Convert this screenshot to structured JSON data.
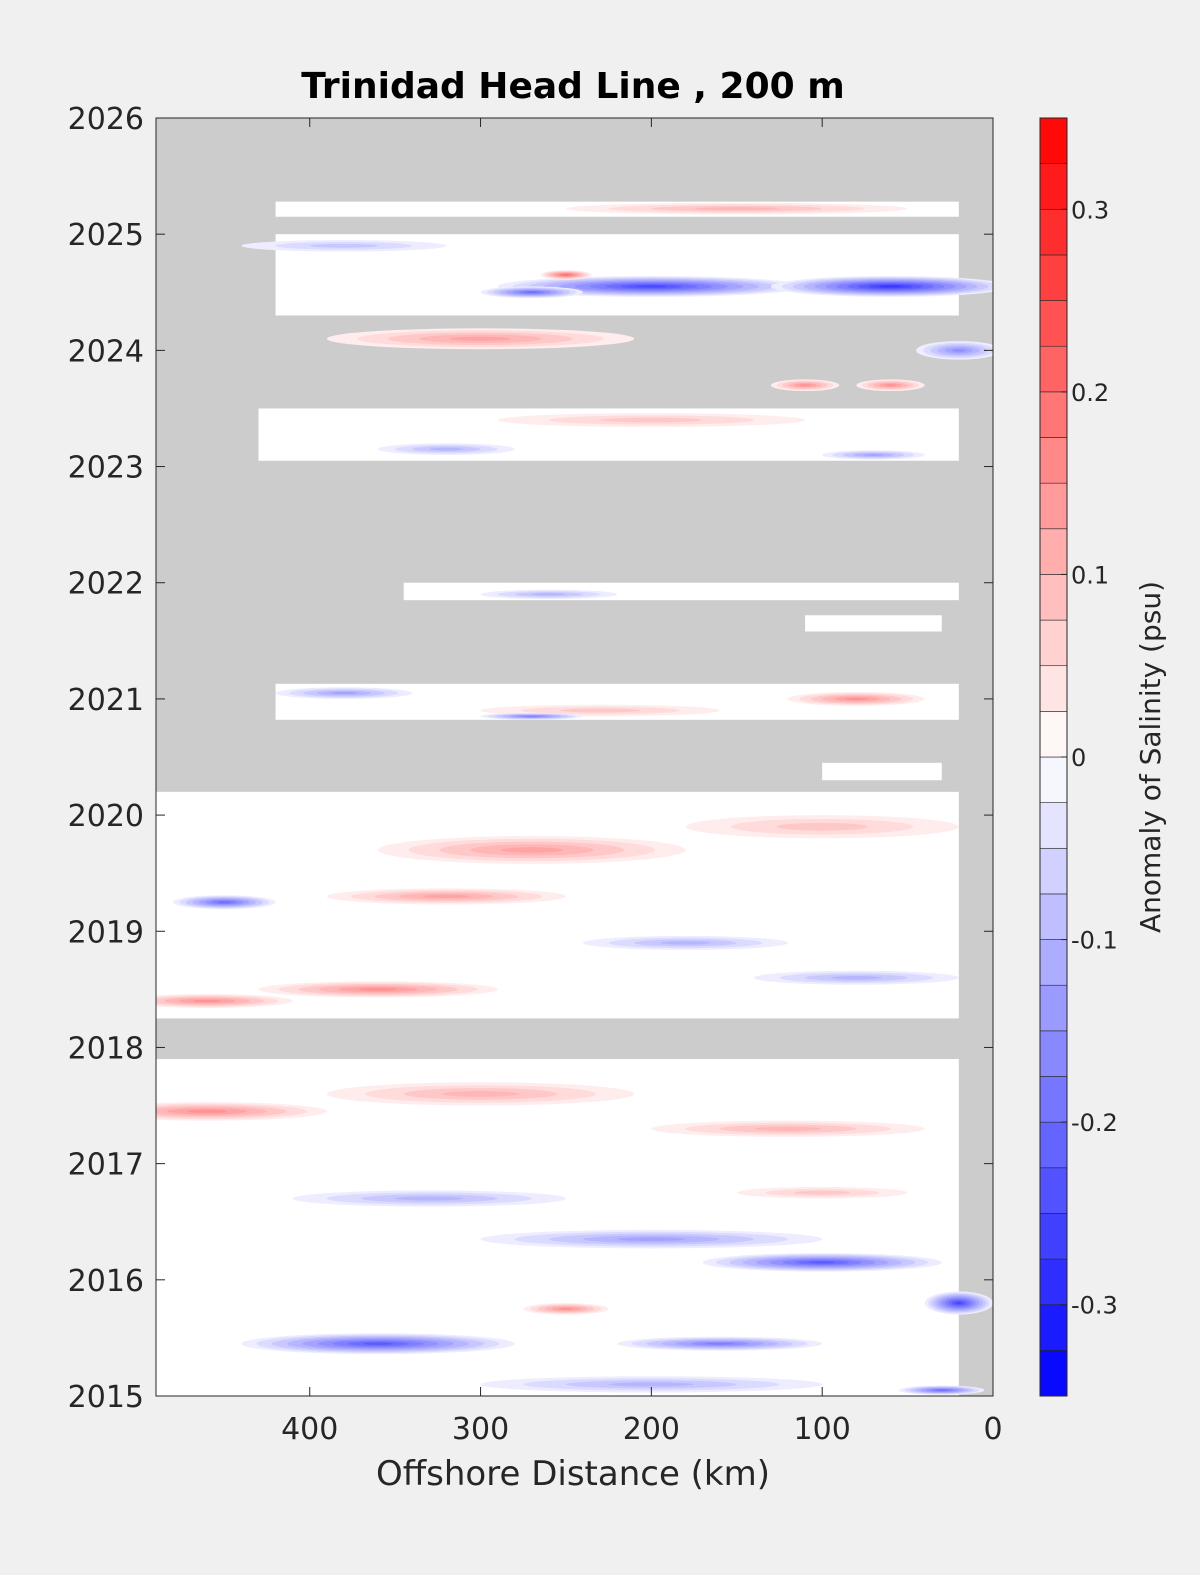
{
  "chart_data": {
    "type": "heatmap",
    "title": "Trinidad Head Line , 200 m",
    "xlabel": "Offshore Distance (km)",
    "ylabel": "",
    "xlim": [
      490,
      0
    ],
    "ylim": [
      2015,
      2026
    ],
    "x_ticks": [
      400,
      300,
      200,
      100,
      0
    ],
    "x_tick_labels": [
      "400",
      "300",
      "200",
      "100",
      "0"
    ],
    "y_ticks": [
      2015,
      2016,
      2017,
      2018,
      2019,
      2020,
      2021,
      2022,
      2023,
      2024,
      2025,
      2026
    ],
    "y_tick_labels": [
      "2015",
      "2016",
      "2017",
      "2018",
      "2019",
      "2020",
      "2021",
      "2022",
      "2023",
      "2024",
      "2025",
      "2026"
    ],
    "x_reversed": true,
    "colorbar": {
      "label": "Anomaly of Salinity (psu)",
      "range": [
        -0.35,
        0.35
      ],
      "step": 0.025,
      "ticks": [
        0.3,
        0.2,
        0.1,
        0,
        -0.1,
        -0.2,
        -0.3
      ],
      "tick_labels": [
        "0.3",
        "0.2",
        "0.1",
        "0",
        "-0.1",
        "-0.2",
        "-0.3"
      ]
    },
    "colors": {
      "missing_data": "#cccccc",
      "negative": "#0000ff",
      "zero": "#ffffff",
      "positive": "#ff0000",
      "background": "#f0f0f0"
    },
    "data_bands": [
      {
        "y": [
          2025.15,
          2025.28
        ],
        "x": [
          420,
          20
        ]
      },
      {
        "y": [
          2024.3,
          2025.0
        ],
        "x": [
          420,
          20
        ]
      },
      {
        "y": [
          2023.05,
          2023.5
        ],
        "x": [
          430,
          20
        ]
      },
      {
        "y": [
          2021.85,
          2022.0
        ],
        "x": [
          345,
          20
        ]
      },
      {
        "y": [
          2021.58,
          2021.72
        ],
        "x": [
          110,
          30
        ]
      },
      {
        "y": [
          2020.82,
          2021.13
        ],
        "x": [
          420,
          20
        ]
      },
      {
        "y": [
          2020.3,
          2020.45
        ],
        "x": [
          100,
          30
        ]
      },
      {
        "y": [
          2018.25,
          2020.2
        ],
        "x": [
          490,
          20
        ]
      },
      {
        "y": [
          2015.0,
          2017.9
        ],
        "x": [
          490,
          20
        ]
      }
    ],
    "anomaly_features": [
      {
        "x": 200,
        "y": 2024.55,
        "sx": 90,
        "sy": 0.09,
        "v": -0.25
      },
      {
        "x": 60,
        "y": 2024.55,
        "sx": 70,
        "sy": 0.09,
        "v": -0.28
      },
      {
        "x": 270,
        "y": 2024.5,
        "sx": 30,
        "sy": 0.05,
        "v": -0.2
      },
      {
        "x": 250,
        "y": 2024.65,
        "sx": 15,
        "sy": 0.04,
        "v": 0.2
      },
      {
        "x": 380,
        "y": 2024.9,
        "sx": 60,
        "sy": 0.05,
        "v": -0.08
      },
      {
        "x": 300,
        "y": 2024.1,
        "sx": 90,
        "sy": 0.09,
        "v": 0.12
      },
      {
        "x": 20,
        "y": 2024.0,
        "sx": 25,
        "sy": 0.08,
        "v": -0.15
      },
      {
        "x": 110,
        "y": 2023.7,
        "sx": 20,
        "sy": 0.05,
        "v": 0.15
      },
      {
        "x": 60,
        "y": 2023.7,
        "sx": 20,
        "sy": 0.05,
        "v": 0.14
      },
      {
        "x": 200,
        "y": 2023.4,
        "sx": 90,
        "sy": 0.06,
        "v": 0.08
      },
      {
        "x": 320,
        "y": 2023.15,
        "sx": 40,
        "sy": 0.05,
        "v": -0.1
      },
      {
        "x": 70,
        "y": 2023.1,
        "sx": 30,
        "sy": 0.04,
        "v": -0.12
      },
      {
        "x": 150,
        "y": 2025.22,
        "sx": 100,
        "sy": 0.05,
        "v": 0.1
      },
      {
        "x": 80,
        "y": 2021.0,
        "sx": 40,
        "sy": 0.06,
        "v": 0.15
      },
      {
        "x": 230,
        "y": 2020.9,
        "sx": 70,
        "sy": 0.05,
        "v": 0.08
      },
      {
        "x": 380,
        "y": 2021.05,
        "sx": 40,
        "sy": 0.05,
        "v": -0.12
      },
      {
        "x": 270,
        "y": 2020.85,
        "sx": 30,
        "sy": 0.03,
        "v": -0.18
      },
      {
        "x": 260,
        "y": 2021.9,
        "sx": 40,
        "sy": 0.04,
        "v": -0.1
      },
      {
        "x": 270,
        "y": 2019.7,
        "sx": 90,
        "sy": 0.12,
        "v": 0.12
      },
      {
        "x": 450,
        "y": 2019.25,
        "sx": 30,
        "sy": 0.06,
        "v": -0.2
      },
      {
        "x": 320,
        "y": 2019.3,
        "sx": 70,
        "sy": 0.07,
        "v": 0.12
      },
      {
        "x": 360,
        "y": 2018.5,
        "sx": 70,
        "sy": 0.07,
        "v": 0.16
      },
      {
        "x": 460,
        "y": 2018.4,
        "sx": 50,
        "sy": 0.06,
        "v": 0.14
      },
      {
        "x": 100,
        "y": 2019.9,
        "sx": 80,
        "sy": 0.1,
        "v": 0.08
      },
      {
        "x": 180,
        "y": 2018.9,
        "sx": 60,
        "sy": 0.06,
        "v": -0.1
      },
      {
        "x": 80,
        "y": 2018.6,
        "sx": 60,
        "sy": 0.06,
        "v": -0.1
      },
      {
        "x": 460,
        "y": 2017.45,
        "sx": 70,
        "sy": 0.08,
        "v": 0.14
      },
      {
        "x": 300,
        "y": 2017.6,
        "sx": 90,
        "sy": 0.1,
        "v": 0.1
      },
      {
        "x": 120,
        "y": 2017.3,
        "sx": 80,
        "sy": 0.07,
        "v": 0.1
      },
      {
        "x": 330,
        "y": 2016.7,
        "sx": 80,
        "sy": 0.07,
        "v": -0.1
      },
      {
        "x": 200,
        "y": 2016.35,
        "sx": 100,
        "sy": 0.08,
        "v": -0.12
      },
      {
        "x": 100,
        "y": 2016.15,
        "sx": 70,
        "sy": 0.08,
        "v": -0.22
      },
      {
        "x": 360,
        "y": 2015.45,
        "sx": 80,
        "sy": 0.09,
        "v": -0.22
      },
      {
        "x": 20,
        "y": 2015.8,
        "sx": 20,
        "sy": 0.1,
        "v": -0.25
      },
      {
        "x": 160,
        "y": 2015.45,
        "sx": 60,
        "sy": 0.06,
        "v": -0.18
      },
      {
        "x": 250,
        "y": 2015.75,
        "sx": 25,
        "sy": 0.05,
        "v": 0.14
      },
      {
        "x": 200,
        "y": 2015.1,
        "sx": 100,
        "sy": 0.07,
        "v": -0.1
      },
      {
        "x": 30,
        "y": 2015.05,
        "sx": 25,
        "sy": 0.04,
        "v": -0.2
      },
      {
        "x": 100,
        "y": 2016.75,
        "sx": 50,
        "sy": 0.05,
        "v": 0.08
      }
    ]
  }
}
